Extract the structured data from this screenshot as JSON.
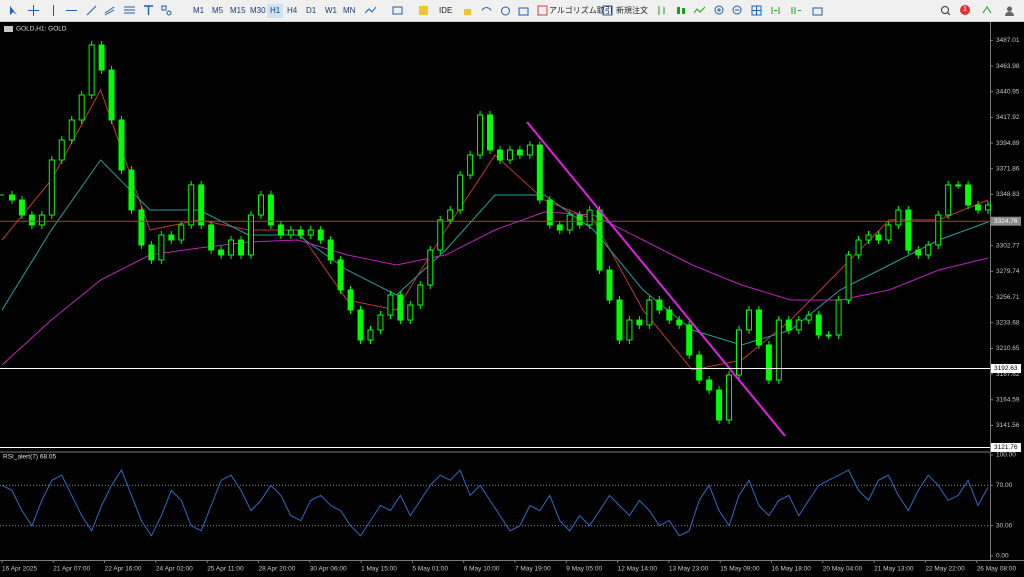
{
  "toolbar": {
    "timeframes": [
      "M1",
      "M5",
      "M15",
      "M30",
      "H1",
      "H4",
      "D1",
      "W1",
      "MN"
    ],
    "active_timeframe": "H1",
    "buttons": [
      "IDE",
      "アルゴリズム取引",
      "新規注文"
    ],
    "badge": "1"
  },
  "chart_data": [
    {
      "type": "candlestick",
      "title": "GOLD,H1: GOLD",
      "color": "#00ff00",
      "closes": [
        3348.3,
        3343.8,
        3330.3,
        3321.4,
        3330.3,
        3379.7,
        3397.6,
        3415.6,
        3438.0,
        3482.9,
        3460.4,
        3415.6,
        3370.7,
        3334.8,
        3303.4,
        3290.0,
        3312.4,
        3307.9,
        3321.4,
        3357.3,
        3321.4,
        3298.9,
        3294.5,
        3307.9,
        3294.5,
        3330.3,
        3348.3,
        3321.4,
        3312.4,
        3316.9,
        3312.4,
        3316.9,
        3307.9,
        3290.0,
        3263.1,
        3245.1,
        3218.2,
        3227.2,
        3240.6,
        3258.6,
        3236.1,
        3249.6,
        3267.5,
        3298.9,
        3325.9,
        3334.8,
        3366.2,
        3384.2,
        3420.1,
        3388.7,
        3379.7,
        3388.7,
        3384.2,
        3393.1,
        3343.8,
        3321.4,
        3316.9,
        3330.3,
        3321.4,
        3334.8,
        3281.0,
        3254.1,
        3218.2,
        3236.1,
        3231.7,
        3254.1,
        3245.1,
        3236.1,
        3231.7,
        3204.7,
        3182.3,
        3173.3,
        3146.4,
        3186.8,
        3227.2,
        3245.1,
        3213.7,
        3182.3,
        3236.1,
        3227.2,
        3236.1,
        3240.6,
        3222.7,
        3222.7,
        3254.1,
        3294.5,
        3307.9,
        3312.4,
        3307.9,
        3321.4,
        3334.8,
        3298.9,
        3294.5,
        3303.4,
        3330.3,
        3357.3,
        3357.3,
        3339.3,
        3334.8,
        3339.3
      ],
      "overlays": [
        {
          "color": "#c0392b",
          "values": [
            3307.9,
            3361.7,
            3442.5,
            3316.9,
            3325.9,
            3316.9,
            3316.9,
            3254.1,
            3245.1,
            3316.9,
            3384.2,
            3343.8,
            3325.9,
            3245.1,
            3191.3,
            3200.2,
            3236.1,
            3281.0,
            3325.9,
            3325.9,
            3343.8
          ]
        },
        {
          "color": "#20a0a0",
          "values": [
            3245.1,
            3316.9,
            3379.7,
            3334.8,
            3334.8,
            3312.4,
            3312.4,
            3281.0,
            3258.6,
            3298.9,
            3348.3,
            3348.3,
            3316.9,
            3263.1,
            3227.2,
            3213.7,
            3227.2,
            3263.1,
            3285.5,
            3307.9,
            3324.1
          ]
        },
        {
          "color": "#c020c0",
          "values": [
            3195.8,
            3236.1,
            3272.0,
            3294.5,
            3300.7,
            3306.1,
            3307.9,
            3294.5,
            3285.5,
            3294.5,
            3316.9,
            3333.0,
            3330.3,
            3307.9,
            3285.5,
            3267.5,
            3254.1,
            3254.1,
            3263.1,
            3281.0,
            3291.8
          ]
        }
      ],
      "levels": [
        {
          "value": 3324.76,
          "color": "#b8402a",
          "label_bg": "#8a8a8a",
          "label_color": "#ffffff"
        },
        {
          "value": 3192.63,
          "color": "#ffffff",
          "label_bg": "#ffffff",
          "label_color": "#000000"
        },
        {
          "value": 3121.76,
          "color": "#ffffff",
          "label_bg": "#ffffff",
          "label_color": "#000000"
        }
      ],
      "ylim": [
        3119.5,
        3503.5
      ],
      "yticks": [
        3487.01,
        3463.98,
        3440.95,
        3417.92,
        3394.89,
        3371.86,
        3348.83,
        3302.77,
        3279.74,
        3256.71,
        3233.68,
        3210.65,
        3187.62,
        3164.59,
        3141.56
      ],
      "x_labels": [
        "16 Apr 2025",
        "21 Apr 07:00",
        "22 Apr 16:00",
        "24 Apr 02:00",
        "25 Apr 11:00",
        "28 Apr 20:00",
        "30 Apr 06:00",
        "1 May 15:00",
        "5 May 01:00",
        "6 May 10:00",
        "7 May 19:00",
        "9 May 05:00",
        "12 May 14:00",
        "13 May 23:00",
        "15 May 09:00",
        "16 May 18:00",
        "20 May 04:00",
        "21 May 13:00",
        "22 May 22:00",
        "26 May 08:00"
      ]
    },
    {
      "type": "line",
      "title": "RSI_alert(7) 68.05",
      "color": "#2f6bc0",
      "values": [
        70,
        65,
        45,
        30,
        55,
        75,
        80,
        60,
        40,
        25,
        50,
        70,
        85,
        60,
        35,
        20,
        40,
        65,
        55,
        30,
        25,
        50,
        75,
        80,
        65,
        45,
        55,
        70,
        60,
        40,
        35,
        55,
        60,
        50,
        45,
        30,
        20,
        35,
        50,
        45,
        60,
        40,
        55,
        70,
        80,
        75,
        85,
        60,
        70,
        55,
        40,
        25,
        30,
        50,
        45,
        60,
        35,
        25,
        40,
        30,
        45,
        60,
        50,
        40,
        55,
        45,
        30,
        35,
        20,
        25,
        55,
        70,
        45,
        30,
        60,
        75,
        50,
        40,
        55,
        60,
        40,
        55,
        70,
        75,
        80,
        85,
        65,
        55,
        75,
        80,
        60,
        45,
        65,
        80,
        70,
        55,
        60,
        75,
        50,
        68.05
      ],
      "ylim": [
        0,
        100
      ],
      "yticks": [
        {
          "value": 100,
          "label": "100.00"
        },
        {
          "value": 70,
          "label": "70.00"
        },
        {
          "value": 30,
          "label": "30.00"
        },
        {
          "value": 0,
          "label": "0.00"
        }
      ],
      "levels": [
        70,
        30
      ]
    }
  ]
}
